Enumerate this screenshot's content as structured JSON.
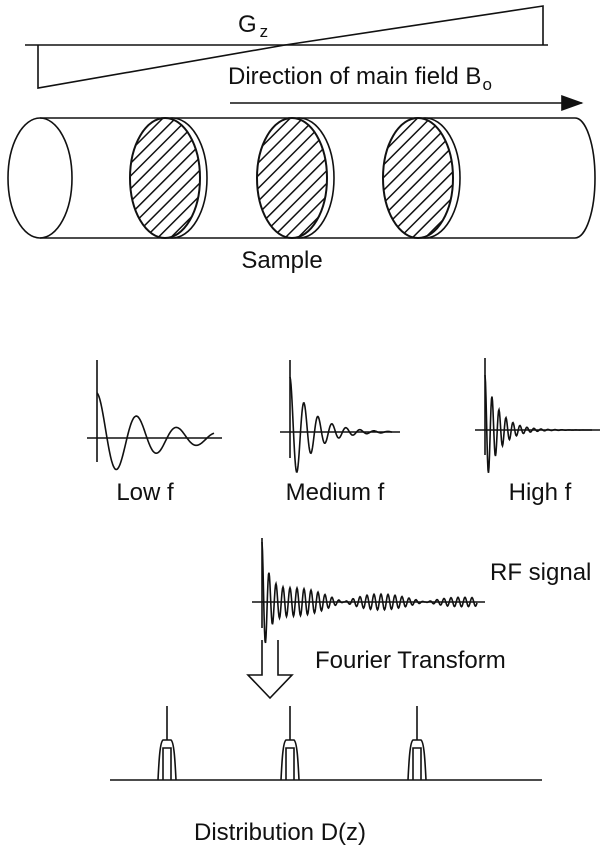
{
  "gradient": {
    "label": "G",
    "subscript": "z"
  },
  "field": {
    "label": "Direction of main field B",
    "subscript": "o"
  },
  "sample": {
    "label": "Sample"
  },
  "signals": [
    {
      "label": "Low f"
    },
    {
      "label": "Medium f"
    },
    {
      "label": "High f"
    }
  ],
  "rf_signal": {
    "label": "RF signal"
  },
  "transform": {
    "label": "Fourier Transform"
  },
  "distribution": {
    "label": "Distribution D(z)"
  }
}
